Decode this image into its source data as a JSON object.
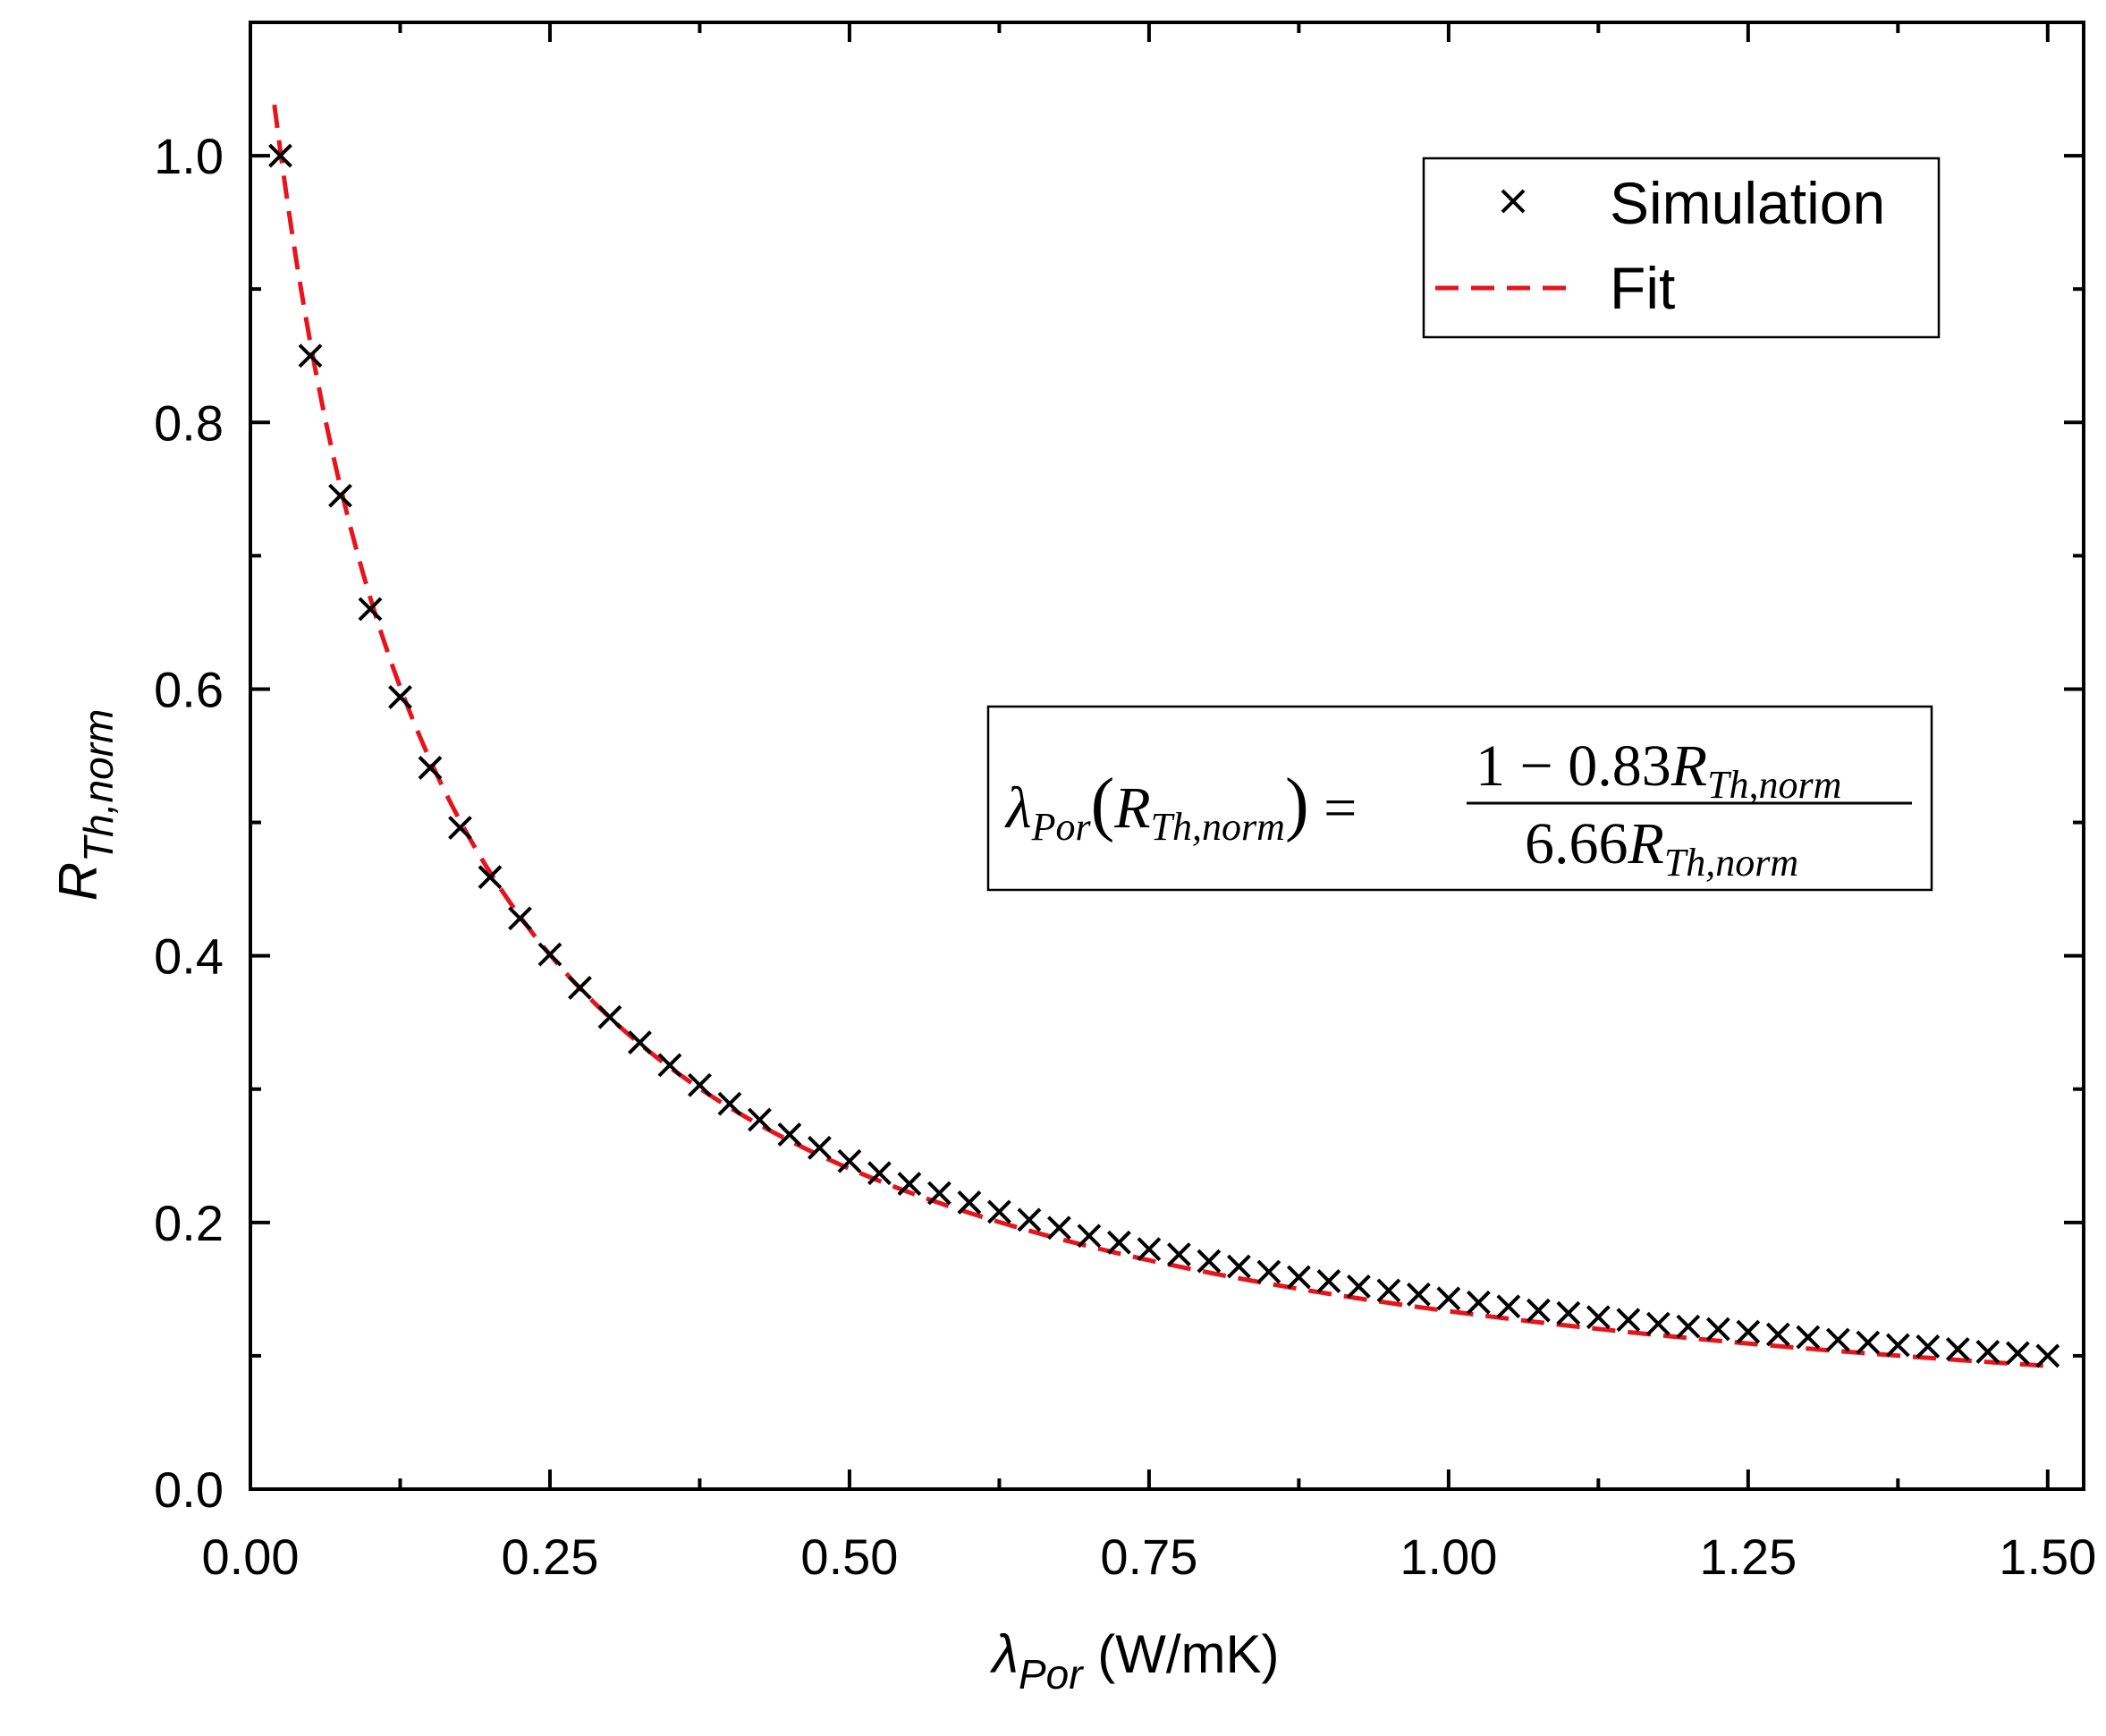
{
  "chart_data": {
    "type": "scatter",
    "title": "",
    "xlabel": {
      "symbol": "λ",
      "subscript": "Por",
      "unit": "(W/mK)"
    },
    "ylabel": {
      "symbol": "R",
      "subscript": "Th,norm"
    },
    "xlim": [
      0.0,
      1.53
    ],
    "ylim": [
      0.0,
      1.1
    ],
    "xticks": [
      "0.00",
      "0.25",
      "0.50",
      "0.75",
      "1.00",
      "1.25",
      "1.50"
    ],
    "yticks": [
      "0.0",
      "0.2",
      "0.4",
      "0.6",
      "0.8",
      "1.0"
    ],
    "grid": false,
    "legend_position": "top-right",
    "legend": [
      {
        "label": "Simulation",
        "marker": "x",
        "color": "#000000"
      },
      {
        "label": "Fit",
        "style": "dashed",
        "color": "#e8141c"
      }
    ],
    "series": [
      {
        "name": "Simulation",
        "x": [
          0.025,
          0.05,
          0.075,
          0.1,
          0.125,
          0.15,
          0.175,
          0.2,
          0.225,
          0.25,
          0.275,
          0.3,
          0.325,
          0.35,
          0.375,
          0.4,
          0.425,
          0.45,
          0.475,
          0.5,
          0.525,
          0.55,
          0.575,
          0.6,
          0.625,
          0.65,
          0.675,
          0.7,
          0.725,
          0.75,
          0.775,
          0.8,
          0.825,
          0.85,
          0.875,
          0.9,
          0.925,
          0.95,
          0.975,
          1.0,
          1.025,
          1.05,
          1.075,
          1.1,
          1.125,
          1.15,
          1.175,
          1.2,
          1.225,
          1.25,
          1.275,
          1.3,
          1.325,
          1.35,
          1.375,
          1.4,
          1.425,
          1.45,
          1.475,
          1.5
        ],
        "y": [
          1.0,
          0.85,
          0.745,
          0.66,
          0.594,
          0.541,
          0.496,
          0.459,
          0.428,
          0.401,
          0.376,
          0.354,
          0.335,
          0.318,
          0.303,
          0.289,
          0.277,
          0.266,
          0.256,
          0.246,
          0.237,
          0.229,
          0.222,
          0.215,
          0.208,
          0.202,
          0.196,
          0.19,
          0.185,
          0.18,
          0.176,
          0.171,
          0.167,
          0.163,
          0.159,
          0.156,
          0.152,
          0.149,
          0.146,
          0.143,
          0.14,
          0.137,
          0.134,
          0.132,
          0.129,
          0.127,
          0.124,
          0.122,
          0.12,
          0.118,
          0.116,
          0.114,
          0.112,
          0.11,
          0.108,
          0.107,
          0.105,
          0.103,
          0.102,
          0.1
        ]
      },
      {
        "name": "Fit",
        "equation": "R = 1 / (6.66*λ + 0.83)",
        "x_range": [
          0.02,
          1.5
        ],
        "color": "#e8141c"
      }
    ],
    "annotation": {
      "lhs_symbol": "λ",
      "lhs_sub": "Por",
      "arg_symbol": "R",
      "arg_sub": "Th,norm",
      "numerator": "1 − 0.83",
      "denominator": "6.66",
      "var": "R",
      "var_sub": "Th,norm"
    }
  }
}
